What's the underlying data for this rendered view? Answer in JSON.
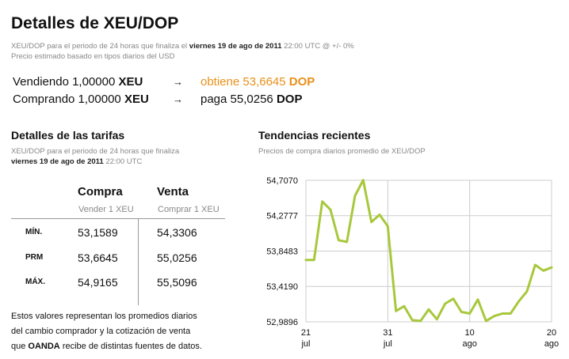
{
  "title": "Detalles de XEU/DOP",
  "meta": {
    "line1_prefix": "XEU/DOP para el periodo de 24 horas que finaliza el",
    "date": "viernes 19 de ago de 2011",
    "line1_suffix": "22:00 UTC @ +/- 0%",
    "line2": "Precio estimado basado en tipos diarios del USD"
  },
  "conversion": {
    "sell": {
      "label": "Vendiendo 1,00000",
      "code": "XEU",
      "arrow": "→",
      "result_label": "obtiene 53,6645",
      "result_code": "DOP"
    },
    "buy": {
      "label": "Comprando 1,00000",
      "code": "XEU",
      "arrow": "→",
      "result_label": "paga 55,0256",
      "result_code": "DOP"
    }
  },
  "rates": {
    "heading": "Detalles de las tarifas",
    "sub_line1": "XEU/DOP para el periodo de 24 horas que finaliza",
    "sub_date": "viernes 19 de ago de 2011",
    "sub_time": "22:00 UTC",
    "col_buy": "Compra",
    "col_buy_sub": "Vender 1 XEU",
    "col_sell": "Venta",
    "col_sell_sub": "Comprar 1 XEU",
    "rows": [
      {
        "label": "MÍN.",
        "buy": "53,1589",
        "sell": "54,3306"
      },
      {
        "label": "PRM",
        "buy": "53,6645",
        "sell": "55,0256"
      },
      {
        "label": "MÁX.",
        "buy": "54,9165",
        "sell": "55,5096"
      }
    ]
  },
  "note": {
    "line1": "Estos valores representan los promedios diarios",
    "line2": "del cambio comprador y la cotización de venta",
    "line3_prefix": "que",
    "line3_brand": "OANDA",
    "line3_suffix": "recibe de distintas fuentes de datos."
  },
  "trends": {
    "heading": "Tendencias recientes",
    "sub": "Precios de compra diarios promedio de XEU/DOP"
  },
  "colors": {
    "accent": "#e8901a",
    "line": "#a8c83c",
    "grid": "#cccccc"
  },
  "chart_data": {
    "type": "line",
    "y_ticks": [
      {
        "value": 54.707,
        "label": "54,7070"
      },
      {
        "value": 54.2777,
        "label": "54,2777"
      },
      {
        "value": 53.8483,
        "label": "53,8483"
      },
      {
        "value": 53.419,
        "label": "53,4190"
      },
      {
        "value": 52.9896,
        "label": "52,9896"
      }
    ],
    "ylim": [
      52.9896,
      54.707
    ],
    "x_ticks": [
      {
        "day": 0,
        "top": "21",
        "bottom": "jul"
      },
      {
        "day": 10,
        "top": "31",
        "bottom": "jul"
      },
      {
        "day": 20,
        "top": "10",
        "bottom": "ago"
      },
      {
        "day": 30,
        "top": "20",
        "bottom": "ago"
      }
    ],
    "xlim": [
      0,
      30
    ],
    "grid": true,
    "series": [
      {
        "x": [
          0,
          1,
          2,
          3,
          4,
          5,
          6,
          7,
          8,
          9,
          10,
          11,
          12,
          13,
          14,
          15,
          16,
          17,
          18,
          19,
          20,
          21,
          22,
          23,
          24,
          25,
          26,
          27,
          28,
          29,
          30
        ],
        "y": [
          53.74,
          53.74,
          54.45,
          54.35,
          53.98,
          53.96,
          54.52,
          54.71,
          54.2,
          54.29,
          54.15,
          53.12,
          53.18,
          53.01,
          53.0,
          53.14,
          53.02,
          53.21,
          53.27,
          53.11,
          53.09,
          53.26,
          53.0,
          53.06,
          53.09,
          53.09,
          53.24,
          53.36,
          53.68,
          53.61,
          53.65
        ]
      }
    ]
  }
}
